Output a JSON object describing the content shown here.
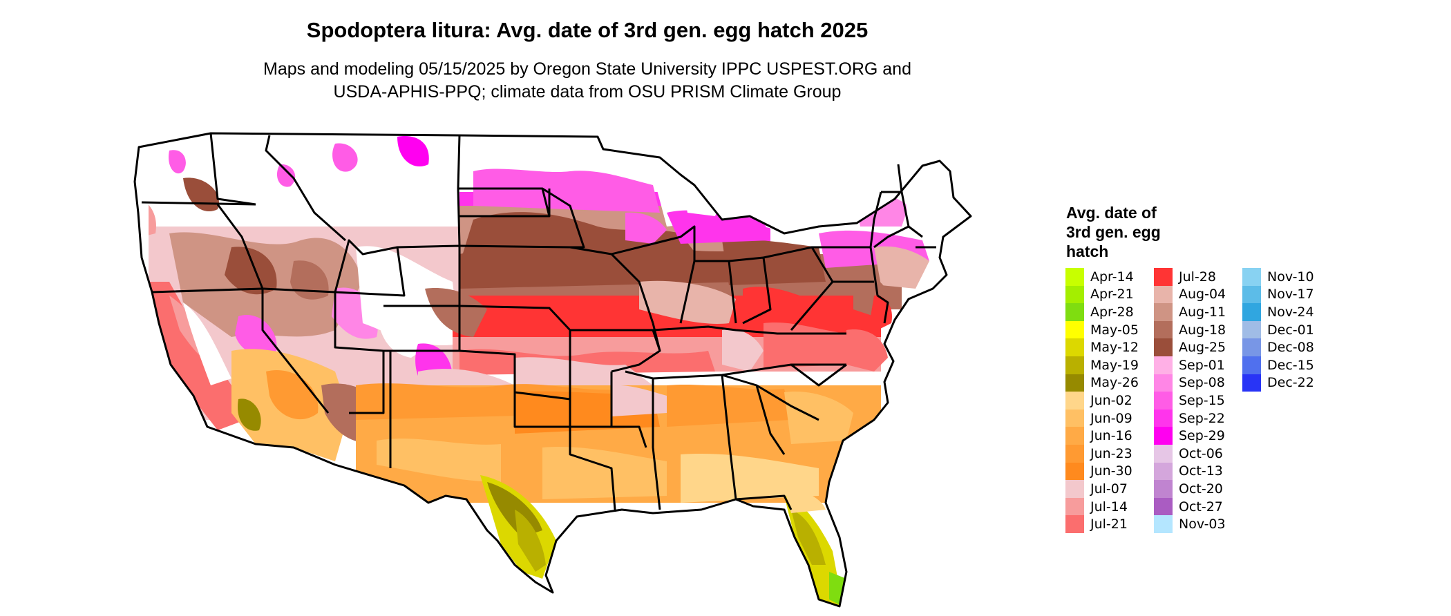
{
  "title": "Spodoptera litura: Avg. date of 3rd gen. egg hatch 2025",
  "subtitle_line1": "Maps and modeling 05/15/2025 by Oregon State University IPPC USPEST.ORG and",
  "subtitle_line2": "USDA-APHIS-PPQ; climate data from OSU PRISM Climate Group",
  "legend": {
    "title_line1": "Avg. date of",
    "title_line2": "3rd gen. egg",
    "title_line3": "hatch",
    "columns": [
      [
        {
          "label": "Apr-14",
          "color": "#c8ff00"
        },
        {
          "label": "Apr-21",
          "color": "#a4ee00"
        },
        {
          "label": "Apr-28",
          "color": "#7fdd10"
        },
        {
          "label": "May-05",
          "color": "#ffff00"
        },
        {
          "label": "May-12",
          "color": "#dcd800"
        },
        {
          "label": "May-19",
          "color": "#b9b000"
        },
        {
          "label": "May-26",
          "color": "#968a00"
        },
        {
          "label": "Jun-02",
          "color": "#ffd68a"
        },
        {
          "label": "Jun-09",
          "color": "#ffc064"
        },
        {
          "label": "Jun-16",
          "color": "#ffaa46"
        },
        {
          "label": "Jun-23",
          "color": "#ff9a32"
        },
        {
          "label": "Jun-30",
          "color": "#ff8a1e"
        },
        {
          "label": "Jul-07",
          "color": "#f3c8cc"
        },
        {
          "label": "Jul-14",
          "color": "#f79c9c"
        },
        {
          "label": "Jul-21",
          "color": "#fb6e6e"
        }
      ],
      [
        {
          "label": "Jul-28",
          "color": "#ff3434"
        },
        {
          "label": "Aug-04",
          "color": "#e8b4aa"
        },
        {
          "label": "Aug-11",
          "color": "#cf9484"
        },
        {
          "label": "Aug-18",
          "color": "#b36e5c"
        },
        {
          "label": "Aug-25",
          "color": "#9a4e3a"
        },
        {
          "label": "Sep-01",
          "color": "#ffb0e6"
        },
        {
          "label": "Sep-08",
          "color": "#ff86e6"
        },
        {
          "label": "Sep-15",
          "color": "#ff5ce6"
        },
        {
          "label": "Sep-22",
          "color": "#ff34ec"
        },
        {
          "label": "Sep-29",
          "color": "#ff00f0"
        },
        {
          "label": "Oct-06",
          "color": "#e6c6e6"
        },
        {
          "label": "Oct-13",
          "color": "#d4a6dc"
        },
        {
          "label": "Oct-20",
          "color": "#c084d0"
        },
        {
          "label": "Oct-27",
          "color": "#aa5cc2"
        },
        {
          "label": "Nov-03",
          "color": "#b4e6ff"
        }
      ],
      [
        {
          "label": "Nov-10",
          "color": "#88d2f2"
        },
        {
          "label": "Nov-17",
          "color": "#5cbce8"
        },
        {
          "label": "Nov-24",
          "color": "#30a6e0"
        },
        {
          "label": "Dec-01",
          "color": "#a0bce6"
        },
        {
          "label": "Dec-08",
          "color": "#7896e6"
        },
        {
          "label": "Dec-15",
          "color": "#5070ee"
        },
        {
          "label": "Dec-22",
          "color": "#2834f6"
        }
      ]
    ]
  }
}
